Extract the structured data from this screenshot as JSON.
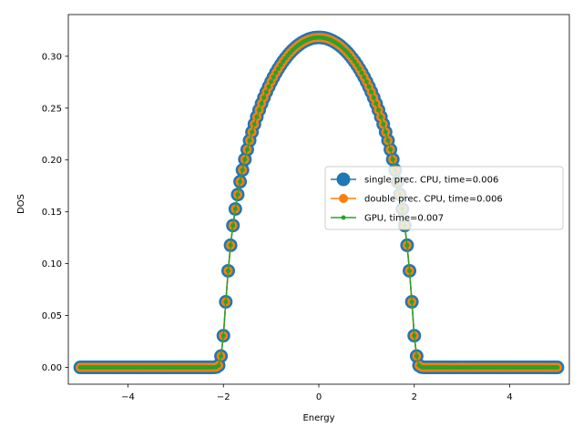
{
  "chart_data": {
    "type": "line",
    "title": "",
    "xlabel": "Energy",
    "ylabel": "DOS",
    "xlim": [
      -5.25,
      5.25
    ],
    "ylim": [
      -0.0162,
      0.3402
    ],
    "xticks": [
      -4,
      -2,
      0,
      2,
      4
    ],
    "xtick_labels": [
      "−4",
      "−2",
      "0",
      "2",
      "4"
    ],
    "yticks": [
      0.0,
      0.05,
      0.1,
      0.15,
      0.2,
      0.25,
      0.3
    ],
    "ytick_labels": [
      "0.00",
      "0.05",
      "0.10",
      "0.15",
      "0.20",
      "0.25",
      "0.30"
    ],
    "grid": false,
    "legend_position": "center-right",
    "dos_model": "semicircle, half-bandwidth 2, Gaussian broadened 0.06",
    "x_range": [
      -5,
      5
    ],
    "num_points": 201,
    "series": [
      {
        "name": "single prec. CPU, time=0.006",
        "color": "#1f77b4",
        "marker": "circle",
        "marker_size": "large",
        "peak": 0.318
      },
      {
        "name": "double prec. CPU, time=0.006",
        "color": "#ff7f0e",
        "marker": "circle",
        "marker_size": "medium",
        "peak": 0.318
      },
      {
        "name": "GPU, time=0.007",
        "color": "#2ca02c",
        "marker": "circle",
        "marker_size": "small",
        "peak": 0.318
      }
    ]
  }
}
